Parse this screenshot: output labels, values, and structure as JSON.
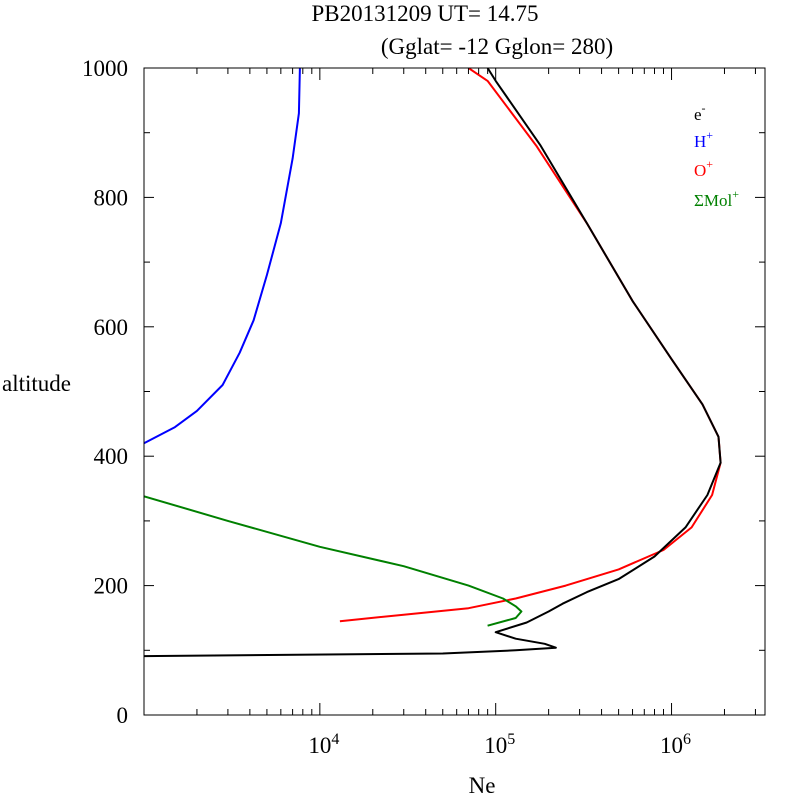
{
  "chart_data": {
    "type": "line",
    "title": "PB20131209   UT=  14.75",
    "subtitle": "(Gglat= -12   Gglon=  280)",
    "xlabel": "Ne",
    "ylabel": "altitude",
    "xscale": "log",
    "xlim": [
      1000,
      3400000
    ],
    "ylim": [
      0,
      1000
    ],
    "x_tick_labels": [
      {
        "value": 10000,
        "base": "10",
        "exp": "4"
      },
      {
        "value": 100000,
        "base": "10",
        "exp": "5"
      },
      {
        "value": 1000000,
        "base": "10",
        "exp": "6"
      }
    ],
    "y_tick_labels": [
      "0",
      "200",
      "400",
      "600",
      "800",
      "1000"
    ],
    "legend_placement": "top-right",
    "series": [
      {
        "name": "e-",
        "label_base": "e",
        "label_sup": "-",
        "color": "#000000",
        "points": [
          [
            1000,
            91
          ],
          [
            50000,
            95
          ],
          [
            130000,
            100
          ],
          [
            220000,
            104
          ],
          [
            190000,
            110
          ],
          [
            130000,
            118
          ],
          [
            100000,
            128
          ],
          [
            150000,
            143
          ],
          [
            200000,
            160
          ],
          [
            240000,
            172
          ],
          [
            330000,
            190
          ],
          [
            500000,
            210
          ],
          [
            800000,
            245
          ],
          [
            1200000,
            290
          ],
          [
            1600000,
            340
          ],
          [
            1900000,
            390
          ],
          [
            1850000,
            430
          ],
          [
            1500000,
            480
          ],
          [
            1000000,
            550
          ],
          [
            600000,
            640
          ],
          [
            330000,
            760
          ],
          [
            180000,
            880
          ],
          [
            100000,
            980
          ],
          [
            90000,
            1000
          ]
        ]
      },
      {
        "name": "H+",
        "label_base": "H",
        "label_sup": "+",
        "color": "#0000ff",
        "points": [
          [
            1000,
            420
          ],
          [
            1500,
            445
          ],
          [
            2000,
            470
          ],
          [
            2800,
            510
          ],
          [
            3500,
            560
          ],
          [
            4200,
            610
          ],
          [
            5000,
            680
          ],
          [
            6000,
            760
          ],
          [
            7000,
            860
          ],
          [
            7600,
            930
          ],
          [
            7700,
            1000
          ]
        ]
      },
      {
        "name": "O+",
        "label_base": "O",
        "label_sup": "+",
        "color": "#ff0000",
        "points": [
          [
            13000,
            145
          ],
          [
            30000,
            155
          ],
          [
            70000,
            165
          ],
          [
            130000,
            180
          ],
          [
            250000,
            200
          ],
          [
            500000,
            225
          ],
          [
            900000,
            255
          ],
          [
            1300000,
            290
          ],
          [
            1700000,
            340
          ],
          [
            1900000,
            390
          ],
          [
            1850000,
            430
          ],
          [
            1500000,
            480
          ],
          [
            1000000,
            550
          ],
          [
            600000,
            640
          ],
          [
            330000,
            760
          ],
          [
            170000,
            880
          ],
          [
            90000,
            980
          ],
          [
            70000,
            1000
          ]
        ]
      },
      {
        "name": "ΣMol+",
        "label_base": "ΣMol",
        "label_sup": "+",
        "color": "#008000",
        "points": [
          [
            1000,
            338
          ],
          [
            3000,
            300
          ],
          [
            10000,
            260
          ],
          [
            30000,
            230
          ],
          [
            70000,
            200
          ],
          [
            110000,
            180
          ],
          [
            130000,
            168
          ],
          [
            140000,
            160
          ],
          [
            130000,
            150
          ],
          [
            90000,
            138
          ]
        ]
      }
    ]
  }
}
